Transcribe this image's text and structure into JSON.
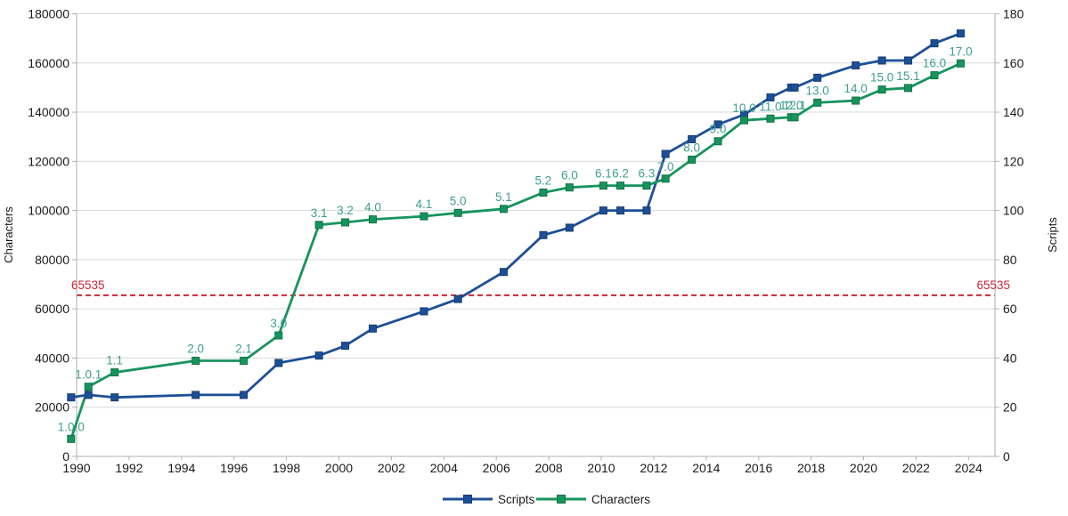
{
  "chart_data": {
    "type": "line",
    "title": "",
    "x_axis": {
      "tick_years": [
        1990,
        1992,
        1994,
        1996,
        1998,
        2000,
        2002,
        2004,
        2006,
        2008,
        2010,
        2012,
        2014,
        2016,
        2018,
        2020,
        2022,
        2024
      ],
      "tick_labels": [
        "1990",
        "1992",
        "1994",
        "1996",
        "1998",
        "2000",
        "2002",
        "2004",
        "2006",
        "2008",
        "2010",
        "2012",
        "2014",
        "2016",
        "2018",
        "2020",
        "2022",
        "2024"
      ],
      "min": 1990,
      "max": 2025
    },
    "y_left_axis": {
      "title": "Characters",
      "min": 0,
      "max": 180000,
      "step": 20000,
      "tick_labels": [
        "0",
        "20000",
        "40000",
        "60000",
        "80000",
        "100000",
        "120000",
        "140000",
        "160000",
        "180000"
      ]
    },
    "y_right_axis": {
      "title": "Scripts",
      "min": 0,
      "max": 180,
      "step": 20,
      "tick_labels": [
        "0",
        "20",
        "40",
        "60",
        "80",
        "100",
        "120",
        "140",
        "160",
        "180"
      ]
    },
    "reference_line": {
      "value": 65535,
      "label_left": "65535",
      "label_right": "65535"
    },
    "points": [
      {
        "version": "1.0.0",
        "x_year": 1990.79,
        "characters": 7129,
        "scripts": 24
      },
      {
        "version": "1.0.1",
        "x_year": 1991.45,
        "characters": 28327,
        "scripts": 25
      },
      {
        "version": "1.1",
        "x_year": 1992.45,
        "characters": 34168,
        "scripts": 24
      },
      {
        "version": "2.0",
        "x_year": 1995.54,
        "characters": 38885,
        "scripts": 25
      },
      {
        "version": "2.1",
        "x_year": 1997.37,
        "characters": 38887,
        "scripts": 25
      },
      {
        "version": "3.0",
        "x_year": 1998.7,
        "characters": 49194,
        "scripts": 38
      },
      {
        "version": "3.1",
        "x_year": 2000.24,
        "characters": 94140,
        "scripts": 41
      },
      {
        "version": "3.2",
        "x_year": 2001.24,
        "characters": 95156,
        "scripts": 45
      },
      {
        "version": "4.0",
        "x_year": 2002.29,
        "characters": 96382,
        "scripts": 52
      },
      {
        "version": "4.1",
        "x_year": 2004.24,
        "characters": 97655,
        "scripts": 59
      },
      {
        "version": "5.0",
        "x_year": 2005.54,
        "characters": 99024,
        "scripts": 64
      },
      {
        "version": "5.1",
        "x_year": 2007.28,
        "characters": 100648,
        "scripts": 75
      },
      {
        "version": "5.2",
        "x_year": 2008.79,
        "characters": 107296,
        "scripts": 90
      },
      {
        "version": "6.0",
        "x_year": 2009.79,
        "characters": 109384,
        "scripts": 93
      },
      {
        "version": "6.1",
        "x_year": 2011.08,
        "characters": 110116,
        "scripts": 100
      },
      {
        "version": "6.2",
        "x_year": 2011.73,
        "characters": 110117,
        "scripts": 100
      },
      {
        "version": "6.3",
        "x_year": 2012.73,
        "characters": 110122,
        "scripts": 100
      },
      {
        "version": "7.0",
        "x_year": 2013.45,
        "characters": 112956,
        "scripts": 123
      },
      {
        "version": "8.0",
        "x_year": 2014.45,
        "characters": 120672,
        "scripts": 129
      },
      {
        "version": "9.0",
        "x_year": 2015.45,
        "characters": 128172,
        "scripts": 135
      },
      {
        "version": "10.0",
        "x_year": 2016.45,
        "characters": 136690,
        "scripts": 139
      },
      {
        "version": "11.0",
        "x_year": 2017.45,
        "characters": 137374,
        "scripts": 146
      },
      {
        "version": "12.0",
        "x_year": 2018.24,
        "characters": 137928,
        "scripts": 150
      },
      {
        "version": "12.1",
        "x_year": 2018.37,
        "characters": 137929,
        "scripts": 150
      },
      {
        "version": "13.0",
        "x_year": 2019.24,
        "characters": 143859,
        "scripts": 154
      },
      {
        "version": "14.0",
        "x_year": 2020.7,
        "characters": 144697,
        "scripts": 159
      },
      {
        "version": "15.0",
        "x_year": 2021.7,
        "characters": 149186,
        "scripts": 161
      },
      {
        "version": "15.1",
        "x_year": 2022.7,
        "characters": 149813,
        "scripts": 161
      },
      {
        "version": "16.0",
        "x_year": 2023.7,
        "characters": 154998,
        "scripts": 168
      },
      {
        "version": "17.0",
        "x_year": 2024.7,
        "characters": 159801,
        "scripts": 172
      }
    ],
    "series": [
      {
        "name": "Scripts",
        "axis": "right",
        "field": "scripts",
        "color": "#1d4f96"
      },
      {
        "name": "Characters",
        "axis": "left",
        "field": "characters",
        "color": "#17945d"
      }
    ],
    "legend": {
      "position": "bottom",
      "items": [
        "Scripts",
        "Characters"
      ]
    },
    "grid": "horizontal-only"
  },
  "colors": {
    "blue": "#1d4f96",
    "blue_marker_edge": "#163c72",
    "green": "#17945d",
    "green_marker_edge": "#107347",
    "data_label": "#3f9e8e",
    "red": "#cd2532",
    "grid": "#d9d9d9",
    "axis": "#b0b0b0",
    "text": "#1a1a1a",
    "background": "#ffffff"
  }
}
